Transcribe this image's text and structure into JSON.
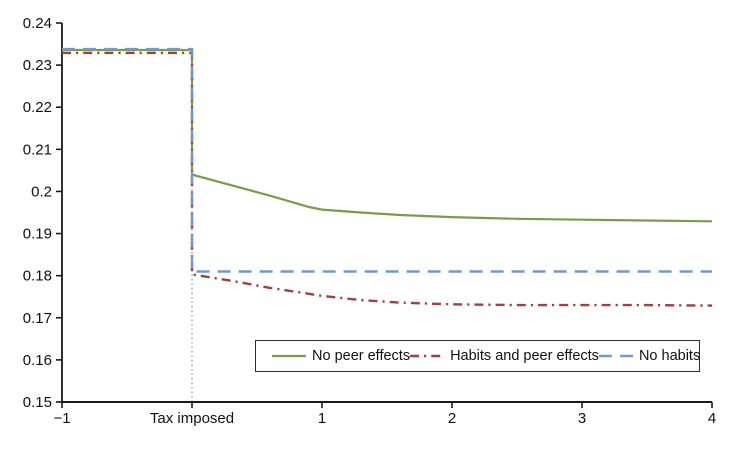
{
  "figure": {
    "background": "#ffffff",
    "axis_color": "#1a1a1a",
    "text_color": "#111111"
  },
  "chart_data": {
    "type": "line",
    "title": "",
    "xlabel": "",
    "ylabel": "",
    "xlim": [
      -1,
      4
    ],
    "ylim": [
      0.15,
      0.24
    ],
    "grid": false,
    "legend_position": "bottom-center-inside-bordered",
    "y_ticks": [
      {
        "v": 0.24,
        "label": "0.24"
      },
      {
        "v": 0.23,
        "label": "0.23"
      },
      {
        "v": 0.22,
        "label": "0.22"
      },
      {
        "v": 0.21,
        "label": "0.21"
      },
      {
        "v": 0.2,
        "label": "0.2"
      },
      {
        "v": 0.19,
        "label": "0.19"
      },
      {
        "v": 0.18,
        "label": "0.18"
      },
      {
        "v": 0.17,
        "label": "0.17"
      },
      {
        "v": 0.16,
        "label": "0.16"
      },
      {
        "v": 0.15,
        "label": "0.15"
      }
    ],
    "x_ticks": [
      {
        "v": -1,
        "label": "−1"
      },
      {
        "v": 0,
        "label": "Tax imposed"
      },
      {
        "v": 1,
        "label": "1"
      },
      {
        "v": 2,
        "label": "2"
      },
      {
        "v": 3,
        "label": "3"
      },
      {
        "v": 4,
        "label": "4"
      }
    ],
    "event_line": {
      "x": 0,
      "from": 0.15,
      "to": 0.2336,
      "color": "#8f8f8f",
      "dash": "1.5 3",
      "width": 1.2,
      "meaning": "tax-imposed-marker"
    },
    "series": [
      {
        "name": "No peer effects",
        "color": "#7a9c49",
        "dash": "",
        "width": 2.2,
        "points": [
          [
            -1,
            0.2336
          ],
          [
            0,
            0.2336
          ],
          [
            0,
            0.204
          ],
          [
            0.6,
            0.199
          ],
          [
            0.9,
            0.1963
          ],
          [
            1,
            0.1957
          ],
          [
            1.3,
            0.195
          ],
          [
            1.6,
            0.1944
          ],
          [
            2,
            0.1939
          ],
          [
            2.5,
            0.1935
          ],
          [
            3,
            0.1933
          ],
          [
            3.5,
            0.1931
          ],
          [
            4,
            0.1929
          ]
        ]
      },
      {
        "name": "Habits and peer effects",
        "color": "#9e4044",
        "dash": "9 5 2.2 5",
        "width": 2.4,
        "points": [
          [
            -1,
            0.2329
          ],
          [
            0,
            0.2329
          ],
          [
            0,
            0.1803
          ],
          [
            0.3,
            0.1788
          ],
          [
            0.6,
            0.1771
          ],
          [
            0.9,
            0.1757
          ],
          [
            1,
            0.1752
          ],
          [
            1.3,
            0.1742
          ],
          [
            1.6,
            0.1736
          ],
          [
            2,
            0.1732
          ],
          [
            2.5,
            0.173
          ],
          [
            3,
            0.173
          ],
          [
            3.5,
            0.173
          ],
          [
            4,
            0.1729
          ]
        ]
      },
      {
        "name": "No habits",
        "color": "#6f9ad0",
        "dash": "13 8",
        "width": 2.4,
        "points": [
          [
            -1,
            0.2338
          ],
          [
            0,
            0.2338
          ],
          [
            0,
            0.181
          ],
          [
            4,
            0.181
          ]
        ]
      }
    ]
  }
}
